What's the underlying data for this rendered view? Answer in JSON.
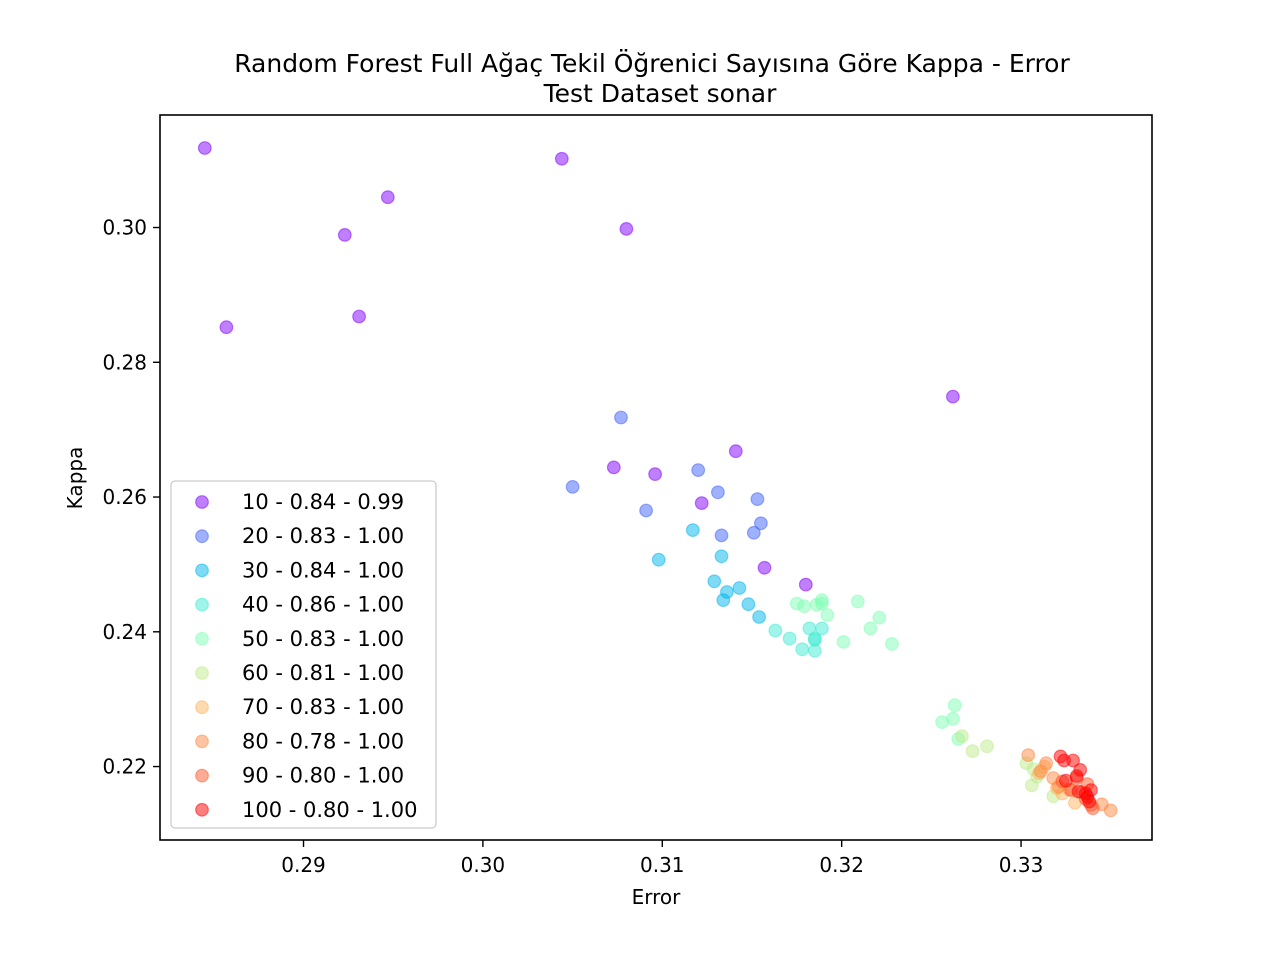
{
  "chart_data": {
    "type": "scatter",
    "title": "Random Forest Full Ağaç Tekil Öğrenici Sayısına Göre Kappa - Error",
    "subtitle": "Test Dataset  sonar",
    "xlabel": "Error",
    "ylabel": "Kappa",
    "xlim": [
      0.282,
      0.3373
    ],
    "ylim": [
      0.2091,
      0.3167
    ],
    "xticks": [
      "0.29",
      "0.30",
      "0.31",
      "0.32",
      "0.33"
    ],
    "xtick_values": [
      0.29,
      0.3,
      0.31,
      0.32,
      0.33
    ],
    "yticks": [
      "0.22",
      "0.24",
      "0.26",
      "0.28",
      "0.30"
    ],
    "ytick_values": [
      0.22,
      0.24,
      0.26,
      0.28,
      0.3
    ],
    "grid": false,
    "legend_position": "lower-left",
    "series": [
      {
        "name": "10 - 0.84 - 0.99",
        "color": "#8000ff",
        "points": [
          [
            0.2845,
            0.3118
          ],
          [
            0.2857,
            0.2852
          ],
          [
            0.2923,
            0.2989
          ],
          [
            0.2947,
            0.3045
          ],
          [
            0.2931,
            0.2868
          ],
          [
            0.3044,
            0.3102
          ],
          [
            0.308,
            0.2998
          ],
          [
            0.3262,
            0.2749
          ],
          [
            0.3073,
            0.2644
          ],
          [
            0.3096,
            0.2634
          ],
          [
            0.3141,
            0.2668
          ],
          [
            0.3122,
            0.2591
          ],
          [
            0.3157,
            0.2495
          ],
          [
            0.318,
            0.247
          ]
        ]
      },
      {
        "name": "20 - 0.83 - 1.00",
        "color": "#4062fa",
        "points": [
          [
            0.3077,
            0.2718
          ],
          [
            0.305,
            0.2615
          ],
          [
            0.3091,
            0.258
          ],
          [
            0.312,
            0.264
          ],
          [
            0.3131,
            0.2607
          ],
          [
            0.3133,
            0.2543
          ],
          [
            0.3153,
            0.2597
          ],
          [
            0.3155,
            0.2561
          ],
          [
            0.3151,
            0.2547
          ]
        ]
      },
      {
        "name": "30 - 0.84 - 1.00",
        "color": "#00b5eb",
        "points": [
          [
            0.3098,
            0.2507
          ],
          [
            0.3117,
            0.2551
          ],
          [
            0.3133,
            0.2512
          ],
          [
            0.3129,
            0.2475
          ],
          [
            0.3134,
            0.2447
          ],
          [
            0.3136,
            0.2459
          ],
          [
            0.3143,
            0.2465
          ],
          [
            0.3148,
            0.2441
          ],
          [
            0.3154,
            0.2422
          ]
        ]
      },
      {
        "name": "40 - 0.86 - 1.00",
        "color": "#40ecd4",
        "points": [
          [
            0.3163,
            0.2402
          ],
          [
            0.3171,
            0.239
          ],
          [
            0.3178,
            0.2374
          ],
          [
            0.3185,
            0.2388
          ],
          [
            0.3185,
            0.2372
          ],
          [
            0.3185,
            0.239
          ],
          [
            0.3182,
            0.2405
          ],
          [
            0.3189,
            0.2405
          ]
        ]
      },
      {
        "name": "50 - 0.83 - 1.00",
        "color": "#80ffb4",
        "points": [
          [
            0.3175,
            0.2442
          ],
          [
            0.3179,
            0.2438
          ],
          [
            0.3186,
            0.244
          ],
          [
            0.3189,
            0.2442
          ],
          [
            0.3189,
            0.2447
          ],
          [
            0.3192,
            0.2425
          ],
          [
            0.3201,
            0.2385
          ],
          [
            0.3209,
            0.2445
          ],
          [
            0.3216,
            0.2405
          ],
          [
            0.3221,
            0.2421
          ],
          [
            0.3228,
            0.2382
          ],
          [
            0.3256,
            0.2266
          ],
          [
            0.3262,
            0.2271
          ],
          [
            0.3263,
            0.2291
          ],
          [
            0.3265,
            0.2241
          ]
        ]
      },
      {
        "name": "60 - 0.81 - 1.00",
        "color": "#c0eb8d",
        "points": [
          [
            0.3267,
            0.2245
          ],
          [
            0.3273,
            0.2223
          ],
          [
            0.3281,
            0.223
          ],
          [
            0.3303,
            0.2205
          ],
          [
            0.3307,
            0.2196
          ],
          [
            0.3306,
            0.2172
          ],
          [
            0.3309,
            0.2185
          ],
          [
            0.3318,
            0.2156
          ]
        ]
      },
      {
        "name": "70 - 0.83 - 1.00",
        "color": "#ffb360",
        "points": [
          [
            0.331,
            0.219
          ],
          [
            0.3313,
            0.22
          ],
          [
            0.332,
            0.2168
          ],
          [
            0.3323,
            0.216
          ],
          [
            0.333,
            0.2146
          ]
        ]
      },
      {
        "name": "80 - 0.78 - 1.00",
        "color": "#ff8a45",
        "points": [
          [
            0.3304,
            0.2217
          ],
          [
            0.3311,
            0.2193
          ],
          [
            0.3314,
            0.2205
          ],
          [
            0.3318,
            0.2183
          ],
          [
            0.3321,
            0.217
          ],
          [
            0.3327,
            0.2166
          ],
          [
            0.3345,
            0.2144
          ],
          [
            0.335,
            0.2135
          ]
        ]
      },
      {
        "name": "90 - 0.80 - 1.00",
        "color": "#ff5a2e",
        "points": [
          [
            0.3323,
            0.2178
          ],
          [
            0.3328,
            0.2165
          ],
          [
            0.3331,
            0.2183
          ],
          [
            0.3334,
            0.2162
          ],
          [
            0.3336,
            0.2152
          ],
          [
            0.3337,
            0.2174
          ],
          [
            0.3339,
            0.2143
          ],
          [
            0.334,
            0.2138
          ]
        ]
      },
      {
        "name": "100 - 0.80 - 1.00",
        "color": "#ff0000",
        "points": [
          [
            0.3322,
            0.2215
          ],
          [
            0.3324,
            0.2209
          ],
          [
            0.3329,
            0.2209
          ],
          [
            0.3333,
            0.2195
          ],
          [
            0.3331,
            0.2186
          ],
          [
            0.3325,
            0.2179
          ],
          [
            0.3332,
            0.2163
          ],
          [
            0.3336,
            0.216
          ],
          [
            0.3337,
            0.2155
          ],
          [
            0.3338,
            0.2148
          ],
          [
            0.3339,
            0.2165
          ]
        ]
      }
    ]
  }
}
